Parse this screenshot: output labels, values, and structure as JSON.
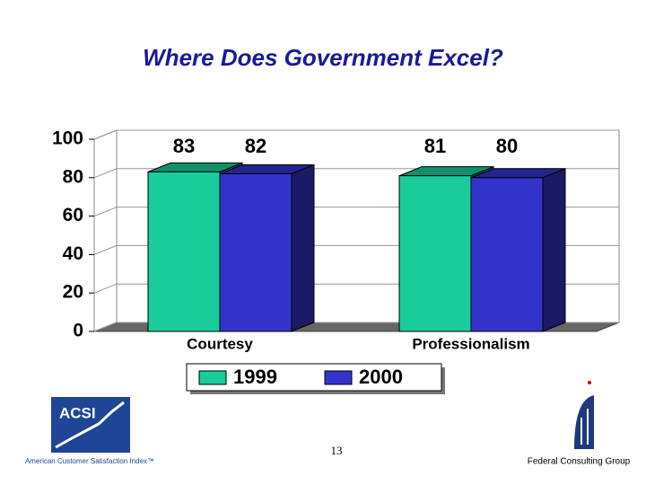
{
  "chart_data": {
    "type": "bar3d",
    "title": "Where Does Government Excel?",
    "categories": [
      "Courtesy",
      "Professionalism"
    ],
    "series": [
      {
        "name": "1999",
        "color": "#19cc99",
        "values": [
          83,
          81
        ]
      },
      {
        "name": "2000",
        "color": "#3333cc",
        "values": [
          82,
          80
        ]
      }
    ],
    "ylim": [
      0,
      100
    ],
    "yticks": [
      0,
      20,
      40,
      60,
      80,
      100
    ],
    "grid": true,
    "legend": "bottom"
  },
  "logo": {
    "name": "ACSI",
    "caption": "American Customer Satisfaction Index™"
  },
  "footer": {
    "page": "13",
    "organization": "Federal Consulting Group"
  }
}
